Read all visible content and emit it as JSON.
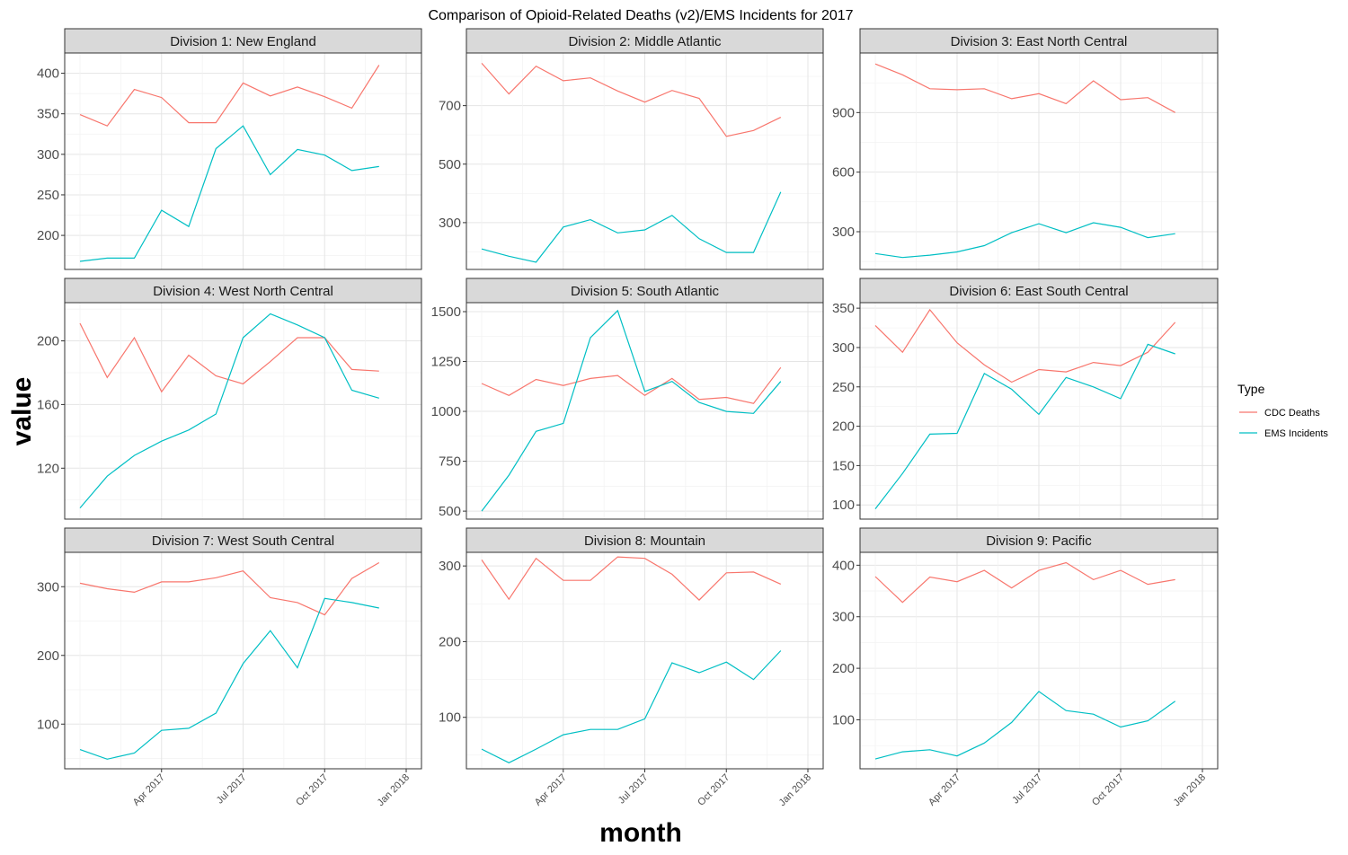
{
  "chart_data": {
    "type": "line",
    "title": "Comparison of Opioid-Related Deaths (v2)/EMS Incidents for 2017",
    "xlabel": "month",
    "ylabel": "value",
    "x": [
      "2017-01",
      "2017-02",
      "2017-03",
      "2017-04",
      "2017-05",
      "2017-06",
      "2017-07",
      "2017-08",
      "2017-09",
      "2017-10",
      "2017-11",
      "2017-12"
    ],
    "x_ticks": [
      "Apr 2017",
      "Jul 2017",
      "Oct 2017",
      "Jan 2018"
    ],
    "legend": {
      "title": "Type",
      "placement": "right",
      "items": [
        {
          "name": "CDC Deaths",
          "color": "#F8766D"
        },
        {
          "name": "EMS Incidents",
          "color": "#00BFC4"
        }
      ]
    },
    "panels": [
      {
        "label": "Division 1: New England",
        "ylim": [
          158,
          425
        ],
        "y_ticks": [
          200,
          250,
          300,
          350,
          400
        ],
        "series": [
          {
            "name": "CDC Deaths",
            "values": [
              349,
              335,
              380,
              370,
              339,
              339,
              388,
              372,
              383,
              371,
              357,
              410
            ]
          },
          {
            "name": "EMS Incidents",
            "values": [
              168,
              172,
              172,
              231,
              211,
              307,
              335,
              275,
              306,
              299,
              280,
              285
            ]
          }
        ]
      },
      {
        "label": "Division 2: Middle Atlantic",
        "ylim": [
          140,
          880
        ],
        "y_ticks": [
          300,
          500,
          700
        ],
        "series": [
          {
            "name": "CDC Deaths",
            "values": [
              845,
              740,
              835,
              785,
              795,
              750,
              712,
              752,
              725,
              595,
              615,
              660
            ]
          },
          {
            "name": "EMS Incidents",
            "values": [
              210,
              185,
              165,
              285,
              310,
              265,
              275,
              325,
              245,
              198,
              198,
              405
            ]
          }
        ]
      },
      {
        "label": "Division 3: East North Central",
        "ylim": [
          110,
          1200
        ],
        "y_ticks": [
          300,
          600,
          900
        ],
        "series": [
          {
            "name": "CDC Deaths",
            "values": [
              1145,
              1090,
              1020,
              1015,
              1020,
              970,
              995,
              945,
              1060,
              965,
              975,
              900
            ]
          },
          {
            "name": "EMS Incidents",
            "values": [
              190,
              170,
              182,
              198,
              230,
              295,
              340,
              295,
              345,
              322,
              270,
              290
            ]
          }
        ]
      },
      {
        "label": "Division 4: West North Central",
        "ylim": [
          88,
          224
        ],
        "y_ticks": [
          120,
          160,
          200
        ],
        "series": [
          {
            "name": "CDC Deaths",
            "values": [
              211,
              177,
              202,
              168,
              191,
              178,
              173,
              187,
              202,
              202,
              182,
              181
            ]
          },
          {
            "name": "EMS Incidents",
            "values": [
              95,
              115,
              128,
              137,
              144,
              154,
              202,
              217,
              210,
              202,
              169,
              164
            ]
          }
        ]
      },
      {
        "label": "Division 5: South Atlantic",
        "ylim": [
          460,
          1545
        ],
        "y_ticks": [
          500,
          750,
          1000,
          1250,
          1500
        ],
        "series": [
          {
            "name": "CDC Deaths",
            "values": [
              1140,
              1080,
              1160,
              1130,
              1165,
              1180,
              1080,
              1165,
              1060,
              1070,
              1040,
              1220
            ]
          },
          {
            "name": "EMS Incidents",
            "values": [
              500,
              680,
              900,
              940,
              1370,
              1505,
              1100,
              1150,
              1045,
              1000,
              990,
              1150
            ]
          }
        ]
      },
      {
        "label": "Division 6: East South Central",
        "ylim": [
          82,
          357
        ],
        "y_ticks": [
          100,
          150,
          200,
          250,
          300,
          350
        ],
        "series": [
          {
            "name": "CDC Deaths",
            "values": [
              328,
              294,
              348,
              306,
              278,
              256,
              272,
              269,
              281,
              277,
              294,
              332
            ]
          },
          {
            "name": "EMS Incidents",
            "values": [
              95,
              140,
              190,
              191,
              267,
              247,
              215,
              262,
              250,
              235,
              304,
              292
            ]
          }
        ]
      },
      {
        "label": "Division 7: West South Central",
        "ylim": [
          35,
          350
        ],
        "y_ticks": [
          100,
          200,
          300
        ],
        "series": [
          {
            "name": "CDC Deaths",
            "values": [
              305,
              297,
              292,
              307,
              307,
              313,
              323,
              284,
              277,
              259,
              312,
              335
            ]
          },
          {
            "name": "EMS Incidents",
            "values": [
              63,
              49,
              58,
              91,
              94,
              116,
              188,
              236,
              182,
              283,
              277,
              269
            ]
          }
        ]
      },
      {
        "label": "Division 8: Mountain",
        "ylim": [
          32,
          318
        ],
        "y_ticks": [
          100,
          200,
          300
        ],
        "series": [
          {
            "name": "CDC Deaths",
            "values": [
              308,
              256,
              310,
              281,
              281,
              312,
              310,
              289,
              255,
              291,
              292,
              276
            ]
          },
          {
            "name": "EMS Incidents",
            "values": [
              58,
              40,
              58,
              77,
              84,
              84,
              98,
              172,
              159,
              173,
              150,
              188
            ]
          }
        ]
      },
      {
        "label": "Division 9: Pacific",
        "ylim": [
          5,
          425
        ],
        "y_ticks": [
          100,
          200,
          300,
          400
        ],
        "series": [
          {
            "name": "CDC Deaths",
            "values": [
              378,
              328,
              377,
              368,
              390,
              356,
              390,
              405,
              372,
              390,
              363,
              372
            ]
          },
          {
            "name": "EMS Incidents",
            "values": [
              24,
              38,
              42,
              30,
              55,
              95,
              155,
              118,
              111,
              86,
              98,
              136
            ]
          }
        ]
      }
    ]
  }
}
